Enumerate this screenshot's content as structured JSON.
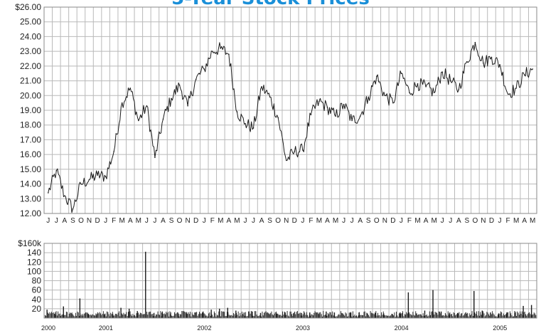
{
  "title": "5-Year Stock Prices",
  "colors": {
    "title": "#1a8fd8",
    "grid": "#b9b9b9",
    "line": "#1a1a1a",
    "frame": "#8a8a8a"
  },
  "chart_data": [
    {
      "type": "line",
      "title": "5-Year Stock Prices",
      "xlabel": "",
      "ylabel": "",
      "ylim": [
        12,
        26
      ],
      "grid": true,
      "x_range": [
        "2000-06",
        "2005-05"
      ],
      "y_ticks": [
        "12.00",
        "13.00",
        "14.00",
        "15.00",
        "16.00",
        "17.00",
        "18.00",
        "19.00",
        "20.00",
        "21.00",
        "22.00",
        "23.00",
        "24.00",
        "25.00",
        "$26.00"
      ],
      "month_ticks": [
        "J",
        "J",
        "A",
        "S",
        "O",
        "N",
        "D",
        "J",
        "F",
        "M",
        "A",
        "M",
        "J",
        "J",
        "A",
        "S",
        "O",
        "N",
        "D",
        "J",
        "F",
        "M",
        "A",
        "M",
        "J",
        "J",
        "A",
        "S",
        "O",
        "N",
        "D",
        "J",
        "F",
        "M",
        "A",
        "M",
        "J",
        "J",
        "A",
        "S",
        "O",
        "N",
        "D",
        "J",
        "F",
        "M",
        "A",
        "M",
        "J",
        "J",
        "A",
        "S",
        "O",
        "N",
        "D",
        "J",
        "F",
        "M",
        "A",
        "M"
      ],
      "series": [
        {
          "x": [
            "2000-06",
            "2000-07",
            "2000-08",
            "2000-09",
            "2000-10",
            "2000-11",
            "2000-12",
            "2001-01",
            "2001-02",
            "2001-03",
            "2001-04",
            "2001-05",
            "2001-06",
            "2001-07",
            "2001-08",
            "2001-09",
            "2001-10",
            "2001-11",
            "2001-12",
            "2002-01",
            "2002-02",
            "2002-03",
            "2002-04",
            "2002-05",
            "2002-06",
            "2002-07",
            "2002-08",
            "2002-09",
            "2002-10",
            "2002-11",
            "2002-12",
            "2003-01",
            "2003-02",
            "2003-03",
            "2003-04",
            "2003-05",
            "2003-06",
            "2003-07",
            "2003-08",
            "2003-09",
            "2003-10",
            "2003-11",
            "2003-12",
            "2004-01",
            "2004-02",
            "2004-03",
            "2004-04",
            "2004-05",
            "2004-06",
            "2004-07",
            "2004-08",
            "2004-09",
            "2004-10",
            "2004-11",
            "2004-12",
            "2005-01",
            "2005-02",
            "2005-03",
            "2005-04",
            "2005-05"
          ],
          "values": [
            13.4,
            14.9,
            13.2,
            12.3,
            14.0,
            14.3,
            14.6,
            14.5,
            16.2,
            19.5,
            20.5,
            18.3,
            19.3,
            15.8,
            18.4,
            19.8,
            20.7,
            19.3,
            21.1,
            21.8,
            23.0,
            23.2,
            22.8,
            18.9,
            18.1,
            17.8,
            20.6,
            19.9,
            18.5,
            15.6,
            16.2,
            16.3,
            18.7,
            19.6,
            19.2,
            18.6,
            19.4,
            18.3,
            18.6,
            19.9,
            21.3,
            20.0,
            19.5,
            21.5,
            20.2,
            20.8,
            20.6,
            20.2,
            21.6,
            21.0,
            20.4,
            22.3,
            23.6,
            22.2,
            22.6,
            22.1,
            20.1,
            20.5,
            21.4,
            21.8
          ]
        }
      ]
    },
    {
      "type": "bar",
      "title": "",
      "xlabel": "",
      "ylabel": "",
      "ylim": [
        0,
        160
      ],
      "grid": true,
      "y_ticks": [
        "20",
        "40",
        "60",
        "80",
        "100",
        "120",
        "140",
        "$160k"
      ],
      "year_labels": [
        "2000",
        "2001",
        "2002",
        "2003",
        "2004",
        "2005"
      ],
      "series": [
        {
          "x": [
            "2000-06",
            "2000-07",
            "2000-08",
            "2000-09",
            "2000-10",
            "2000-11",
            "2000-12",
            "2001-01",
            "2001-02",
            "2001-03",
            "2001-04",
            "2001-05",
            "2001-06",
            "2001-07",
            "2001-08",
            "2001-09",
            "2001-10",
            "2001-11",
            "2001-12",
            "2002-01",
            "2002-02",
            "2002-03",
            "2002-04",
            "2002-05",
            "2002-06",
            "2002-07",
            "2002-08",
            "2002-09",
            "2002-10",
            "2002-11",
            "2002-12",
            "2003-01",
            "2003-02",
            "2003-03",
            "2003-04",
            "2003-05",
            "2003-06",
            "2003-07",
            "2003-08",
            "2003-09",
            "2003-10",
            "2003-11",
            "2003-12",
            "2004-01",
            "2004-02",
            "2004-03",
            "2004-04",
            "2004-05",
            "2004-06",
            "2004-07",
            "2004-08",
            "2004-09",
            "2004-10",
            "2004-11",
            "2004-12",
            "2005-01",
            "2005-02",
            "2005-03",
            "2005-04",
            "2005-05"
          ],
          "values": [
            18,
            8,
            25,
            10,
            42,
            9,
            6,
            8,
            9,
            22,
            20,
            15,
            142,
            10,
            12,
            8,
            9,
            10,
            12,
            14,
            18,
            20,
            22,
            16,
            12,
            14,
            11,
            10,
            9,
            12,
            10,
            11,
            12,
            10,
            14,
            12,
            10,
            11,
            12,
            10,
            11,
            10,
            9,
            12,
            55,
            10,
            16,
            60,
            14,
            10,
            11,
            12,
            58,
            16,
            12,
            10,
            12,
            11,
            26,
            28
          ]
        }
      ]
    }
  ]
}
